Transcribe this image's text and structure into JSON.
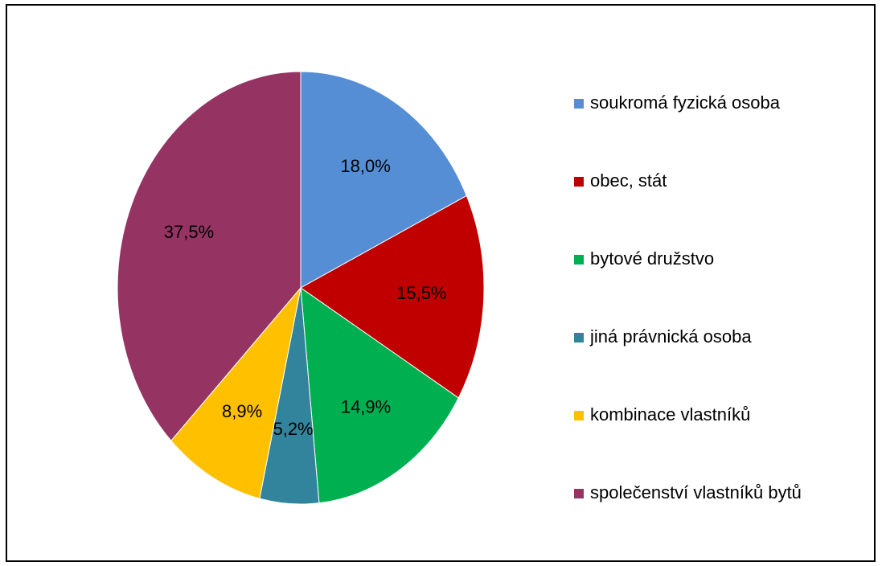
{
  "chart_data": {
    "type": "pie",
    "categories": [
      "soukromá fyzická osoba",
      "obec, stát",
      "bytové družstvo",
      "jiná právnická osoba",
      "kombinace vlastníků",
      "společenství vlastníků bytů"
    ],
    "values": [
      18.0,
      15.5,
      14.9,
      5.2,
      8.9,
      37.5
    ],
    "value_labels": [
      "18,0%",
      "15,5%",
      "14,9%",
      "5,2%",
      "8,9%",
      "37,5%"
    ],
    "colors": [
      "#558ed5",
      "#c00000",
      "#00b050",
      "#31849b",
      "#ffc000",
      "#953463"
    ],
    "legend": "right"
  }
}
